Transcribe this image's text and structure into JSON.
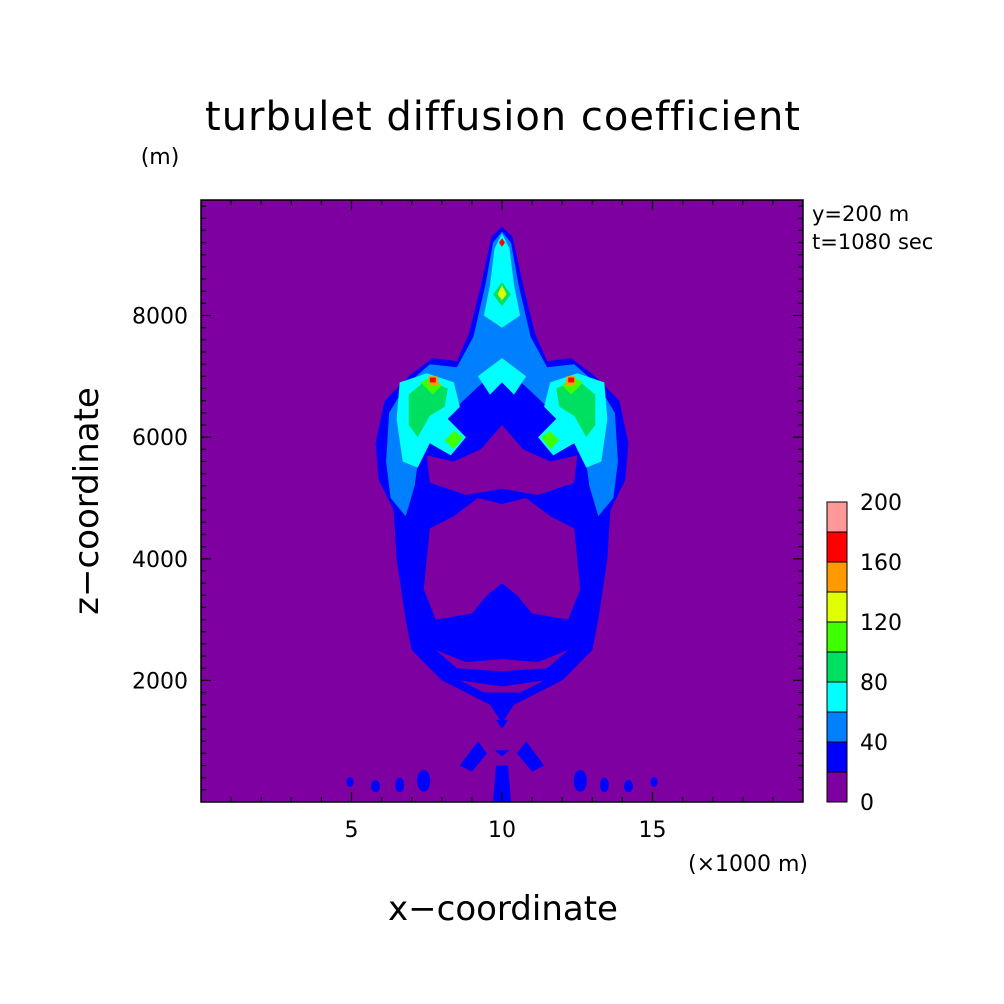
{
  "chart_data": {
    "type": "contour",
    "title": "turbulet diffusion coefficient",
    "xlabel": "x−coordinate",
    "ylabel": "z−coordinate",
    "x_unit": "(×1000 m)",
    "y_unit": "(m)",
    "annotations": [
      "y=200 m",
      "t=1080 sec"
    ],
    "xlim": [
      0,
      20
    ],
    "ylim": [
      0,
      9900
    ],
    "x_ticks": [
      5,
      10,
      15
    ],
    "y_ticks": [
      2000,
      4000,
      6000,
      8000
    ],
    "background_level": 0,
    "colorbar": {
      "levels": [
        0,
        20,
        40,
        60,
        80,
        100,
        120,
        140,
        160,
        180,
        200
      ],
      "tick_labels": [
        "0",
        "40",
        "80",
        "120",
        "160",
        "200"
      ],
      "colors": [
        "#7f00a0",
        "#0000ff",
        "#0080ff",
        "#00ffff",
        "#00e060",
        "#40ff00",
        "#e0ff00",
        "#ff9900",
        "#ff0000",
        "#ff9999"
      ]
    },
    "regions": [
      {
        "level": 20,
        "shape": "polygon",
        "points": [
          [
            10.0,
            9460
          ],
          [
            10.35,
            9300
          ],
          [
            10.7,
            8500
          ],
          [
            11.1,
            7700
          ],
          [
            11.5,
            7250
          ],
          [
            12.3,
            7300
          ],
          [
            13.1,
            7000
          ],
          [
            13.9,
            6600
          ],
          [
            14.2,
            5900
          ],
          [
            14.1,
            5300
          ],
          [
            13.6,
            4800
          ],
          [
            13.5,
            4000
          ],
          [
            13.2,
            3000
          ],
          [
            13.0,
            2500
          ],
          [
            12.0,
            2000
          ],
          [
            10.4,
            1600
          ],
          [
            10.0,
            1300
          ],
          [
            9.6,
            1600
          ],
          [
            8.0,
            2000
          ],
          [
            7.0,
            2500
          ],
          [
            6.8,
            3000
          ],
          [
            6.5,
            4000
          ],
          [
            6.4,
            4800
          ],
          [
            5.9,
            5300
          ],
          [
            5.8,
            5900
          ],
          [
            6.1,
            6600
          ],
          [
            6.9,
            7000
          ],
          [
            7.7,
            7300
          ],
          [
            8.5,
            7250
          ],
          [
            8.9,
            7700
          ],
          [
            9.3,
            8500
          ],
          [
            9.65,
            9300
          ]
        ]
      },
      {
        "level": 40,
        "shape": "polygon",
        "points": [
          [
            10.0,
            9380
          ],
          [
            10.3,
            9200
          ],
          [
            10.55,
            8500
          ],
          [
            10.95,
            7650
          ],
          [
            11.5,
            7150
          ],
          [
            12.4,
            7200
          ],
          [
            13.2,
            6850
          ],
          [
            13.75,
            6400
          ],
          [
            13.85,
            5600
          ],
          [
            13.7,
            5000
          ],
          [
            13.2,
            4700
          ],
          [
            12.9,
            5200
          ],
          [
            12.6,
            6300
          ],
          [
            12.0,
            6700
          ],
          [
            11.5,
            6500
          ],
          [
            10.0,
            7200
          ],
          [
            8.5,
            6500
          ],
          [
            8.0,
            6700
          ],
          [
            7.4,
            6300
          ],
          [
            7.1,
            5200
          ],
          [
            6.8,
            4700
          ],
          [
            6.3,
            5000
          ],
          [
            6.15,
            5600
          ],
          [
            6.25,
            6400
          ],
          [
            6.8,
            6850
          ],
          [
            7.6,
            7200
          ],
          [
            8.5,
            7150
          ],
          [
            9.05,
            7650
          ],
          [
            9.45,
            8500
          ],
          [
            9.7,
            9200
          ]
        ]
      },
      {
        "level": 60,
        "shape": "polygon",
        "points": [
          [
            10.0,
            9350
          ],
          [
            10.25,
            9100
          ],
          [
            10.4,
            8500
          ],
          [
            10.6,
            8000
          ],
          [
            10.0,
            7800
          ],
          [
            9.4,
            8000
          ],
          [
            9.6,
            8500
          ],
          [
            9.75,
            9100
          ]
        ]
      },
      {
        "level": 60,
        "shape": "polygon",
        "points": [
          [
            6.6,
            6900
          ],
          [
            7.5,
            7050
          ],
          [
            8.4,
            6900
          ],
          [
            8.6,
            6500
          ],
          [
            8.2,
            6300
          ],
          [
            8.8,
            6000
          ],
          [
            8.3,
            5700
          ],
          [
            7.6,
            5900
          ],
          [
            7.2,
            5500
          ],
          [
            6.7,
            5600
          ],
          [
            6.5,
            6300
          ]
        ]
      },
      {
        "level": 60,
        "shape": "polygon",
        "points": [
          [
            13.4,
            6900
          ],
          [
            12.5,
            7050
          ],
          [
            11.6,
            6900
          ],
          [
            11.4,
            6500
          ],
          [
            11.8,
            6300
          ],
          [
            11.2,
            6000
          ],
          [
            11.7,
            5700
          ],
          [
            12.4,
            5900
          ],
          [
            12.8,
            5500
          ],
          [
            13.3,
            5600
          ],
          [
            13.5,
            6300
          ]
        ]
      },
      {
        "level": 60,
        "shape": "polygon",
        "points": [
          [
            9.2,
            7000
          ],
          [
            9.6,
            6700
          ],
          [
            10.0,
            6900
          ],
          [
            10.4,
            6700
          ],
          [
            10.8,
            7000
          ],
          [
            10.0,
            7300
          ]
        ]
      },
      {
        "level": 80,
        "shape": "polygon",
        "points": [
          [
            10.0,
            8550
          ],
          [
            10.3,
            8350
          ],
          [
            10.0,
            8150
          ],
          [
            9.7,
            8350
          ]
        ]
      },
      {
        "level": 80,
        "shape": "polygon",
        "points": [
          [
            6.9,
            6700
          ],
          [
            7.5,
            6950
          ],
          [
            8.2,
            6800
          ],
          [
            8.1,
            6500
          ],
          [
            7.6,
            6350
          ],
          [
            7.2,
            6000
          ],
          [
            6.9,
            6200
          ]
        ]
      },
      {
        "level": 80,
        "shape": "polygon",
        "points": [
          [
            13.1,
            6700
          ],
          [
            12.5,
            6950
          ],
          [
            11.8,
            6800
          ],
          [
            11.9,
            6500
          ],
          [
            12.4,
            6350
          ],
          [
            12.8,
            6000
          ],
          [
            13.1,
            6200
          ]
        ]
      },
      {
        "level": 100,
        "shape": "polygon",
        "points": [
          [
            7.3,
            6900
          ],
          [
            7.7,
            7000
          ],
          [
            8.0,
            6850
          ],
          [
            7.7,
            6700
          ]
        ]
      },
      {
        "level": 100,
        "shape": "polygon",
        "points": [
          [
            12.7,
            6900
          ],
          [
            12.3,
            7000
          ],
          [
            12.0,
            6850
          ],
          [
            12.3,
            6700
          ]
        ]
      },
      {
        "level": 100,
        "shape": "polygon",
        "points": [
          [
            8.4,
            6100
          ],
          [
            8.7,
            6000
          ],
          [
            8.4,
            5800
          ],
          [
            8.1,
            5950
          ]
        ]
      },
      {
        "level": 100,
        "shape": "polygon",
        "points": [
          [
            11.6,
            6100
          ],
          [
            11.3,
            6000
          ],
          [
            11.6,
            5800
          ],
          [
            11.9,
            5950
          ]
        ]
      },
      {
        "level": 120,
        "shape": "polygon",
        "points": [
          [
            10.0,
            8500
          ],
          [
            10.15,
            8350
          ],
          [
            10.0,
            8250
          ],
          [
            9.85,
            8350
          ]
        ]
      },
      {
        "level": 140,
        "shape": "polygon",
        "points": [
          [
            7.55,
            7000
          ],
          [
            7.85,
            7000
          ],
          [
            7.9,
            6850
          ],
          [
            7.6,
            6850
          ]
        ]
      },
      {
        "level": 140,
        "shape": "polygon",
        "points": [
          [
            12.45,
            7000
          ],
          [
            12.15,
            7000
          ],
          [
            12.1,
            6850
          ],
          [
            12.4,
            6850
          ]
        ]
      },
      {
        "level": 160,
        "shape": "polygon",
        "points": [
          [
            10.0,
            9270
          ],
          [
            10.1,
            9200
          ],
          [
            10.0,
            9130
          ],
          [
            9.9,
            9200
          ]
        ]
      },
      {
        "level": 160,
        "shape": "polygon",
        "points": [
          [
            7.6,
            6980
          ],
          [
            7.8,
            6980
          ],
          [
            7.8,
            6900
          ],
          [
            7.6,
            6900
          ]
        ]
      },
      {
        "level": 160,
        "shape": "polygon",
        "points": [
          [
            12.4,
            6980
          ],
          [
            12.2,
            6980
          ],
          [
            12.2,
            6900
          ],
          [
            12.4,
            6900
          ]
        ]
      },
      {
        "level": 20,
        "shape": "polygon",
        "points": [
          [
            8.6,
            600
          ],
          [
            9.2,
            1000
          ],
          [
            9.5,
            800
          ],
          [
            9.0,
            500
          ]
        ]
      },
      {
        "level": 20,
        "shape": "polygon",
        "points": [
          [
            11.4,
            600
          ],
          [
            10.8,
            1000
          ],
          [
            10.5,
            800
          ],
          [
            11.0,
            500
          ]
        ]
      },
      {
        "level": 20,
        "shape": "polygon",
        "points": [
          [
            9.8,
            600
          ],
          [
            10.2,
            600
          ],
          [
            10.3,
            0
          ],
          [
            9.7,
            0
          ]
        ]
      },
      {
        "level": 20,
        "shape": "polygon",
        "points": [
          [
            9.75,
            850
          ],
          [
            10.25,
            850
          ],
          [
            10.0,
            750
          ]
        ]
      },
      {
        "level": 20,
        "shape": "polygon",
        "points": [
          [
            9.8,
            1350
          ],
          [
            10.2,
            1350
          ],
          [
            10.0,
            1200
          ]
        ]
      },
      {
        "level": 20,
        "shape": "ellipse",
        "cx": 4.95,
        "cy": 330,
        "rx": 0.12,
        "ry": 80
      },
      {
        "level": 20,
        "shape": "ellipse",
        "cx": 5.8,
        "cy": 260,
        "rx": 0.15,
        "ry": 100
      },
      {
        "level": 20,
        "shape": "ellipse",
        "cx": 6.6,
        "cy": 280,
        "rx": 0.15,
        "ry": 120
      },
      {
        "level": 20,
        "shape": "ellipse",
        "cx": 7.4,
        "cy": 350,
        "rx": 0.22,
        "ry": 180
      },
      {
        "level": 20,
        "shape": "ellipse",
        "cx": 12.6,
        "cy": 350,
        "rx": 0.22,
        "ry": 180
      },
      {
        "level": 20,
        "shape": "ellipse",
        "cx": 13.4,
        "cy": 280,
        "rx": 0.15,
        "ry": 120
      },
      {
        "level": 20,
        "shape": "ellipse",
        "cx": 14.2,
        "cy": 260,
        "rx": 0.15,
        "ry": 100
      },
      {
        "level": 20,
        "shape": "ellipse",
        "cx": 15.05,
        "cy": 330,
        "rx": 0.12,
        "ry": 80
      }
    ],
    "holes": [
      {
        "shape": "polygon",
        "points": [
          [
            7.6,
            4500
          ],
          [
            8.4,
            4700
          ],
          [
            9.2,
            5000
          ],
          [
            10.0,
            4900
          ],
          [
            10.8,
            5000
          ],
          [
            11.6,
            4700
          ],
          [
            12.4,
            4500
          ],
          [
            12.6,
            3500
          ],
          [
            12.2,
            3000
          ],
          [
            11.0,
            3100
          ],
          [
            10.5,
            3400
          ],
          [
            10.0,
            3600
          ],
          [
            9.5,
            3400
          ],
          [
            9.0,
            3100
          ],
          [
            7.8,
            3000
          ],
          [
            7.4,
            3500
          ]
        ]
      },
      {
        "shape": "polygon",
        "points": [
          [
            7.5,
            5700
          ],
          [
            8.4,
            5600
          ],
          [
            9.3,
            5800
          ],
          [
            10.0,
            6200
          ],
          [
            10.7,
            5800
          ],
          [
            11.6,
            5600
          ],
          [
            12.5,
            5700
          ],
          [
            12.4,
            5250
          ],
          [
            11.2,
            5050
          ],
          [
            10.0,
            5150
          ],
          [
            8.8,
            5050
          ],
          [
            7.6,
            5250
          ]
        ]
      },
      {
        "shape": "polygon",
        "points": [
          [
            7.8,
            2500
          ],
          [
            8.8,
            2300
          ],
          [
            10.0,
            2350
          ],
          [
            11.2,
            2300
          ],
          [
            12.2,
            2500
          ],
          [
            11.5,
            2200
          ],
          [
            10.0,
            2150
          ],
          [
            8.5,
            2200
          ]
        ]
      },
      {
        "shape": "polygon",
        "points": [
          [
            8.6,
            2000
          ],
          [
            9.4,
            1800
          ],
          [
            10.6,
            1800
          ],
          [
            11.4,
            2000
          ],
          [
            10.0,
            1900
          ]
        ]
      },
      {
        "shape": "polygon",
        "points": [
          [
            9.5,
            7800
          ],
          [
            10.0,
            7900
          ],
          [
            10.5,
            7800
          ],
          [
            10.0,
            7500
          ]
        ]
      }
    ]
  }
}
